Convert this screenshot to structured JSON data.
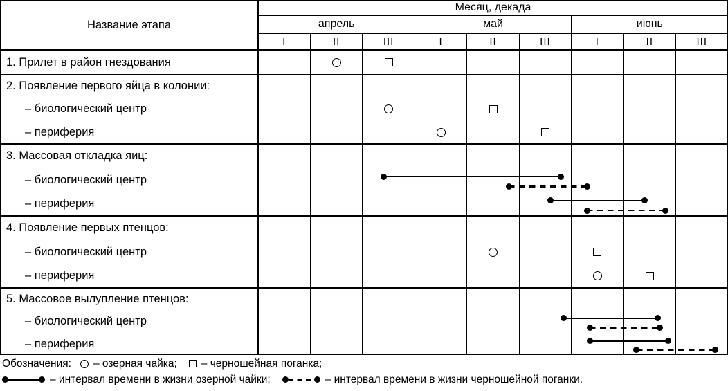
{
  "colors": {
    "ink": "#000000",
    "background": "#ffffff"
  },
  "chart_data": {
    "type": "gantt",
    "row_header": "Название этапа",
    "x_axis": {
      "label": "Месяц, декада",
      "unit": "decade",
      "range_decades": [
        0,
        9
      ],
      "months": [
        {
          "name": "апрель",
          "decades": [
            "I",
            "II",
            "III"
          ]
        },
        {
          "name": "май",
          "decades": [
            "I",
            "II",
            "III"
          ]
        },
        {
          "name": "июнь",
          "decades": [
            "I",
            "II",
            "III"
          ]
        }
      ]
    },
    "marker_meaning": {
      "circle": "озерная чайка",
      "square": "черношейная поганка",
      "solid": "интервал времени в жизни озерной чайки",
      "dashed": "интервал времени в жизни черношейной поганки"
    },
    "rows": [
      {
        "kind": "item",
        "section_start": true,
        "label": "1. Прилет в район гнездования",
        "markers": [
          {
            "symbol": "circle",
            "species": "озерная чайка",
            "month": "апрель",
            "decade": "II",
            "col": 1
          },
          {
            "symbol": "square",
            "species": "черношейная поганка",
            "month": "апрель",
            "decade": "III",
            "col": 2
          }
        ]
      },
      {
        "kind": "group",
        "section_start": true,
        "label": "2. Появление первого яйца в колонии:"
      },
      {
        "kind": "sub",
        "label": "– биологический центр",
        "markers": [
          {
            "symbol": "circle",
            "species": "озерная чайка",
            "month": "апрель",
            "decade": "III",
            "col": 2
          },
          {
            "symbol": "square",
            "species": "черношейная поганка",
            "month": "май",
            "decade": "II",
            "col": 4
          }
        ]
      },
      {
        "kind": "sub",
        "label": "– периферия",
        "markers": [
          {
            "symbol": "circle",
            "species": "озерная чайка",
            "month": "май",
            "decade": "I",
            "col": 3
          },
          {
            "symbol": "square",
            "species": "черношейная поганка",
            "month": "май",
            "decade": "III",
            "col": 5
          }
        ]
      },
      {
        "kind": "group",
        "section_start": true,
        "label": "3. Массовая откладка яиц:"
      },
      {
        "kind": "sub",
        "label": "– биологический центр",
        "intervals": [
          {
            "style": "solid",
            "species": "озерная чайка",
            "from": 2.4,
            "to": 5.8,
            "from_label": "апрель III",
            "to_label": "май III"
          },
          {
            "style": "dashed",
            "species": "черношейная поганка",
            "from": 4.8,
            "to": 6.3,
            "from_label": "май II",
            "to_label": "июнь I"
          }
        ]
      },
      {
        "kind": "sub",
        "label": "– периферия",
        "intervals": [
          {
            "style": "solid",
            "species": "озерная чайка",
            "from": 5.6,
            "to": 7.4,
            "from_label": "май III",
            "to_label": "июнь II"
          },
          {
            "style": "dashed",
            "species": "черношейная поганка",
            "from": 6.3,
            "to": 7.8,
            "from_label": "июнь I",
            "to_label": "июнь II"
          }
        ]
      },
      {
        "kind": "group",
        "section_start": true,
        "label": "4. Появление первых птенцов:"
      },
      {
        "kind": "sub",
        "label": "– биологический центр",
        "markers": [
          {
            "symbol": "circle",
            "species": "озерная чайка",
            "month": "май",
            "decade": "II",
            "col": 4
          },
          {
            "symbol": "square",
            "species": "черношейная поганка",
            "month": "июнь",
            "decade": "I",
            "col": 6
          }
        ]
      },
      {
        "kind": "sub",
        "label": "– периферия",
        "markers": [
          {
            "symbol": "circle",
            "species": "озерная чайка",
            "month": "июнь",
            "decade": "I",
            "col": 6
          },
          {
            "symbol": "square",
            "species": "черношейная поганка",
            "month": "июнь",
            "decade": "II",
            "col": 7
          }
        ]
      },
      {
        "kind": "group",
        "section_start": true,
        "label": "5. Массовое вылупление птенцов:"
      },
      {
        "kind": "sub",
        "label": "– биологический центр",
        "intervals": [
          {
            "style": "solid",
            "species": "озерная чайка",
            "from": 5.85,
            "to": 7.65,
            "from_label": "май III",
            "to_label": "июнь II"
          },
          {
            "style": "dashed",
            "species": "черношейная поганка",
            "from": 6.35,
            "to": 7.7,
            "from_label": "июнь I",
            "to_label": "июнь II"
          }
        ]
      },
      {
        "kind": "sub",
        "label": "– периферия",
        "intervals": [
          {
            "style": "solid",
            "species": "озерная чайка",
            "from": 6.35,
            "to": 7.85,
            "from_label": "июнь I",
            "to_label": "июнь II"
          },
          {
            "style": "dashed",
            "species": "черношейная поганка",
            "from": 7.25,
            "to": 8.75,
            "from_label": "июнь II",
            "to_label": "июнь III"
          }
        ]
      }
    ]
  },
  "legend": {
    "intro": "Обозначения:",
    "items": [
      {
        "symbol": "circle-icon",
        "label": "– озерная чайка;"
      },
      {
        "symbol": "square-icon",
        "label": "– черношейная поганка;"
      },
      {
        "symbol": "solid-interval-icon",
        "label": "– интервал времени в жизни озерной чайки;"
      },
      {
        "symbol": "dashed-interval-icon",
        "label": "– интервал времени в жизни черношейной поганки."
      }
    ]
  }
}
